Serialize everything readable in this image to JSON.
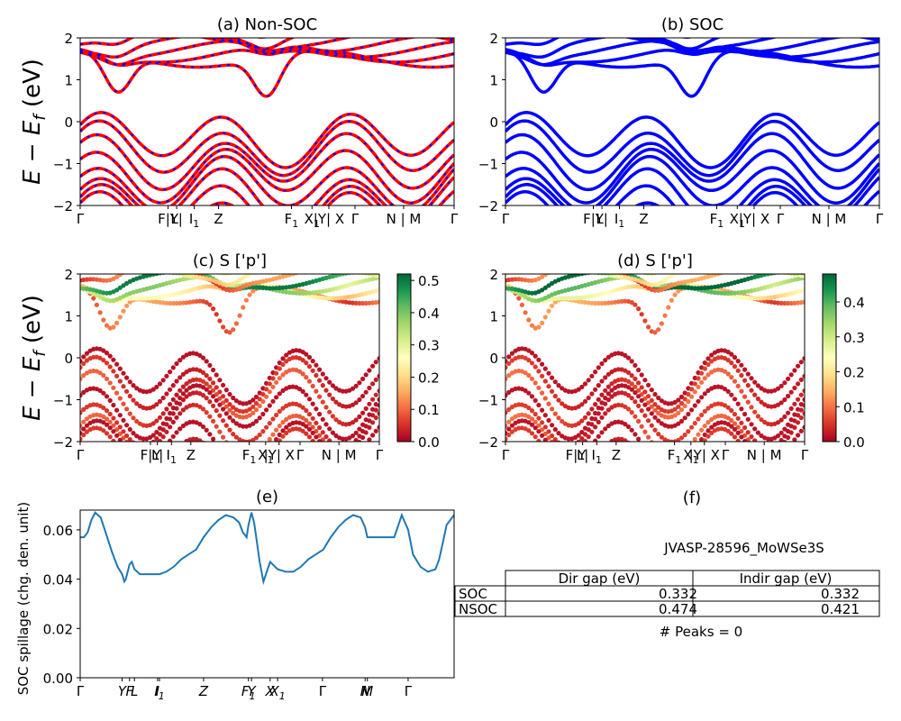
{
  "figure": {
    "row_ylabel_main": "E − E",
    "row_ylabel_sub": "f",
    "row_ylabel_unit": " (eV)"
  },
  "chart_data": [
    {
      "id": "a",
      "type": "line",
      "title": "(a) Non-SOC",
      "ylim": [
        -2,
        2
      ],
      "yticks": [
        -2,
        -1,
        0,
        1,
        2
      ],
      "xlim": [
        0,
        1
      ],
      "xticks": [
        {
          "pos": 0.0,
          "label": "Γ"
        },
        {
          "pos": 0.235,
          "label": "F|Y"
        },
        {
          "pos": 0.258,
          "label": "L|"
        },
        {
          "pos": 0.305,
          "label": "I",
          "sub": "1"
        },
        {
          "pos": 0.37,
          "label": "Z"
        },
        {
          "pos": 0.565,
          "label": "F",
          "sub": "1"
        },
        {
          "pos": 0.62,
          "label": "X",
          "sub": "1"
        },
        {
          "pos": 0.665,
          "label": "|Y| X"
        },
        {
          "pos": 0.735,
          "label": "Γ"
        },
        {
          "pos": 0.865,
          "label": "N | M"
        },
        {
          "pos": 1.0,
          "label": "Γ"
        }
      ],
      "series": [
        {
          "color": "#ff0000",
          "style": "nsoc"
        },
        {
          "color": "#0000ff",
          "style": "soc-dashed"
        }
      ]
    },
    {
      "id": "b",
      "type": "line",
      "title": "(b) SOC",
      "ylim": [
        -2,
        2
      ],
      "yticks": [
        -2,
        -1,
        0,
        1,
        2
      ],
      "xlim": [
        0,
        1
      ],
      "xticks": [
        {
          "pos": 0.0,
          "label": "Γ"
        },
        {
          "pos": 0.235,
          "label": "F|Y"
        },
        {
          "pos": 0.258,
          "label": "L|"
        },
        {
          "pos": 0.305,
          "label": "I",
          "sub": "1"
        },
        {
          "pos": 0.37,
          "label": "Z"
        },
        {
          "pos": 0.565,
          "label": "F",
          "sub": "1"
        },
        {
          "pos": 0.62,
          "label": "X",
          "sub": "1"
        },
        {
          "pos": 0.665,
          "label": "|Y| X"
        },
        {
          "pos": 0.735,
          "label": "Γ"
        },
        {
          "pos": 0.865,
          "label": "N | M"
        },
        {
          "pos": 1.0,
          "label": "Γ"
        }
      ],
      "series": [
        {
          "color": "#0000ff",
          "style": "soc"
        }
      ]
    },
    {
      "id": "c",
      "type": "scatter",
      "title": "(c)  S ['p']",
      "ylim": [
        -2,
        2
      ],
      "yticks": [
        -2,
        -1,
        0,
        1,
        2
      ],
      "colorbar": {
        "min": 0.0,
        "max": 0.52,
        "ticks": [
          "0.0",
          "0.1",
          "0.2",
          "0.3",
          "0.4",
          "0.5"
        ],
        "tick_values": [
          0.0,
          0.1,
          0.2,
          0.3,
          0.4,
          0.5
        ],
        "cmap": "RdYlGn"
      },
      "xticks": [
        {
          "pos": 0.0,
          "label": "Γ"
        },
        {
          "pos": 0.235,
          "label": "F|Y"
        },
        {
          "pos": 0.258,
          "label": "L|"
        },
        {
          "pos": 0.305,
          "label": "I",
          "sub": "1"
        },
        {
          "pos": 0.37,
          "label": "Z"
        },
        {
          "pos": 0.565,
          "label": "F",
          "sub": "1"
        },
        {
          "pos": 0.62,
          "label": "X",
          "sub": "1"
        },
        {
          "pos": 0.665,
          "label": "|Y| X"
        },
        {
          "pos": 0.735,
          "label": "Γ"
        },
        {
          "pos": 0.865,
          "label": "N | M"
        },
        {
          "pos": 1.0,
          "label": "Γ"
        }
      ]
    },
    {
      "id": "d",
      "type": "scatter",
      "title": "(d) S ['p']",
      "ylim": [
        -2,
        2
      ],
      "yticks": [
        -2,
        -1,
        0,
        1,
        2
      ],
      "colorbar": {
        "min": 0.0,
        "max": 0.48,
        "ticks": [
          "0.0",
          "0.1",
          "0.2",
          "0.3",
          "0.4"
        ],
        "tick_values": [
          0.0,
          0.1,
          0.2,
          0.3,
          0.4
        ],
        "cmap": "RdYlGn"
      },
      "xticks": [
        {
          "pos": 0.0,
          "label": "Γ"
        },
        {
          "pos": 0.235,
          "label": "F|Y"
        },
        {
          "pos": 0.258,
          "label": "L|"
        },
        {
          "pos": 0.305,
          "label": "I",
          "sub": "1"
        },
        {
          "pos": 0.37,
          "label": "Z"
        },
        {
          "pos": 0.565,
          "label": "F",
          "sub": "1"
        },
        {
          "pos": 0.62,
          "label": "X",
          "sub": "1"
        },
        {
          "pos": 0.665,
          "label": "|Y| X"
        },
        {
          "pos": 0.735,
          "label": "Γ"
        },
        {
          "pos": 0.865,
          "label": "N | M"
        },
        {
          "pos": 1.0,
          "label": "Γ"
        }
      ]
    },
    {
      "id": "e",
      "type": "line",
      "title": "(e)",
      "ylabel": "SOC spillage (chg. den. unit)",
      "ylim": [
        0.0,
        0.068
      ],
      "yticks": [
        0.0,
        0.02,
        0.04,
        0.06
      ],
      "ytick_labels": [
        "0.00",
        "0.02",
        "0.04",
        "0.06"
      ],
      "xticks": [
        {
          "pos": 0.0,
          "label": "Γ"
        },
        {
          "pos": 0.112,
          "label": "Y"
        },
        {
          "pos": 0.132,
          "label": "F"
        },
        {
          "pos": 0.145,
          "label": "L"
        },
        {
          "pos": 0.207,
          "label": "I"
        },
        {
          "pos": 0.212,
          "label": "I",
          "sub": "1"
        },
        {
          "pos": 0.33,
          "label": "Z"
        },
        {
          "pos": 0.45,
          "label": "F",
          "sub": "1"
        },
        {
          "pos": 0.458,
          "label": "Y"
        },
        {
          "pos": 0.508,
          "label": "X"
        },
        {
          "pos": 0.528,
          "label": "X",
          "sub": "1"
        },
        {
          "pos": 0.648,
          "label": "Γ"
        },
        {
          "pos": 0.762,
          "label": "N"
        },
        {
          "pos": 0.768,
          "label": "M"
        },
        {
          "pos": 0.877,
          "label": "Γ"
        }
      ],
      "series": [
        {
          "color": "#1f77b4",
          "x": [
            0.0,
            0.01,
            0.02,
            0.03,
            0.04,
            0.055,
            0.07,
            0.085,
            0.1,
            0.112,
            0.118,
            0.122,
            0.132,
            0.138,
            0.145,
            0.16,
            0.18,
            0.2,
            0.212,
            0.23,
            0.25,
            0.27,
            0.29,
            0.31,
            0.33,
            0.35,
            0.37,
            0.39,
            0.41,
            0.425,
            0.435,
            0.445,
            0.45,
            0.458,
            0.465,
            0.47,
            0.48,
            0.49,
            0.508,
            0.528,
            0.55,
            0.57,
            0.59,
            0.61,
            0.63,
            0.65,
            0.67,
            0.69,
            0.71,
            0.73,
            0.75,
            0.762,
            0.768,
            0.78,
            0.8,
            0.82,
            0.84,
            0.86,
            0.877,
            0.89,
            0.91,
            0.93,
            0.95,
            0.96,
            0.97,
            0.98,
            1.0
          ],
          "y": [
            0.057,
            0.057,
            0.059,
            0.064,
            0.067,
            0.065,
            0.058,
            0.051,
            0.045,
            0.042,
            0.039,
            0.04,
            0.046,
            0.047,
            0.044,
            0.042,
            0.042,
            0.042,
            0.042,
            0.043,
            0.045,
            0.048,
            0.05,
            0.052,
            0.057,
            0.061,
            0.064,
            0.066,
            0.065,
            0.063,
            0.059,
            0.057,
            0.062,
            0.067,
            0.063,
            0.058,
            0.047,
            0.039,
            0.047,
            0.044,
            0.043,
            0.043,
            0.045,
            0.048,
            0.05,
            0.052,
            0.057,
            0.061,
            0.064,
            0.066,
            0.065,
            0.061,
            0.057,
            0.057,
            0.057,
            0.057,
            0.057,
            0.066,
            0.06,
            0.05,
            0.045,
            0.043,
            0.044,
            0.048,
            0.055,
            0.062,
            0.066
          ]
        }
      ]
    }
  ],
  "table_panel": {
    "title": "(f)",
    "heading": "JVASP-28596_MoWSe3S",
    "col_labels": [
      "Dir gap (eV)",
      "Indir gap (eV)"
    ],
    "rows": [
      {
        "label": "SOC",
        "dir": "0.332",
        "indir": "0.332"
      },
      {
        "label": "NSOC",
        "dir": "0.474",
        "indir": "0.421"
      }
    ],
    "footer": "# Peaks = 0"
  }
}
